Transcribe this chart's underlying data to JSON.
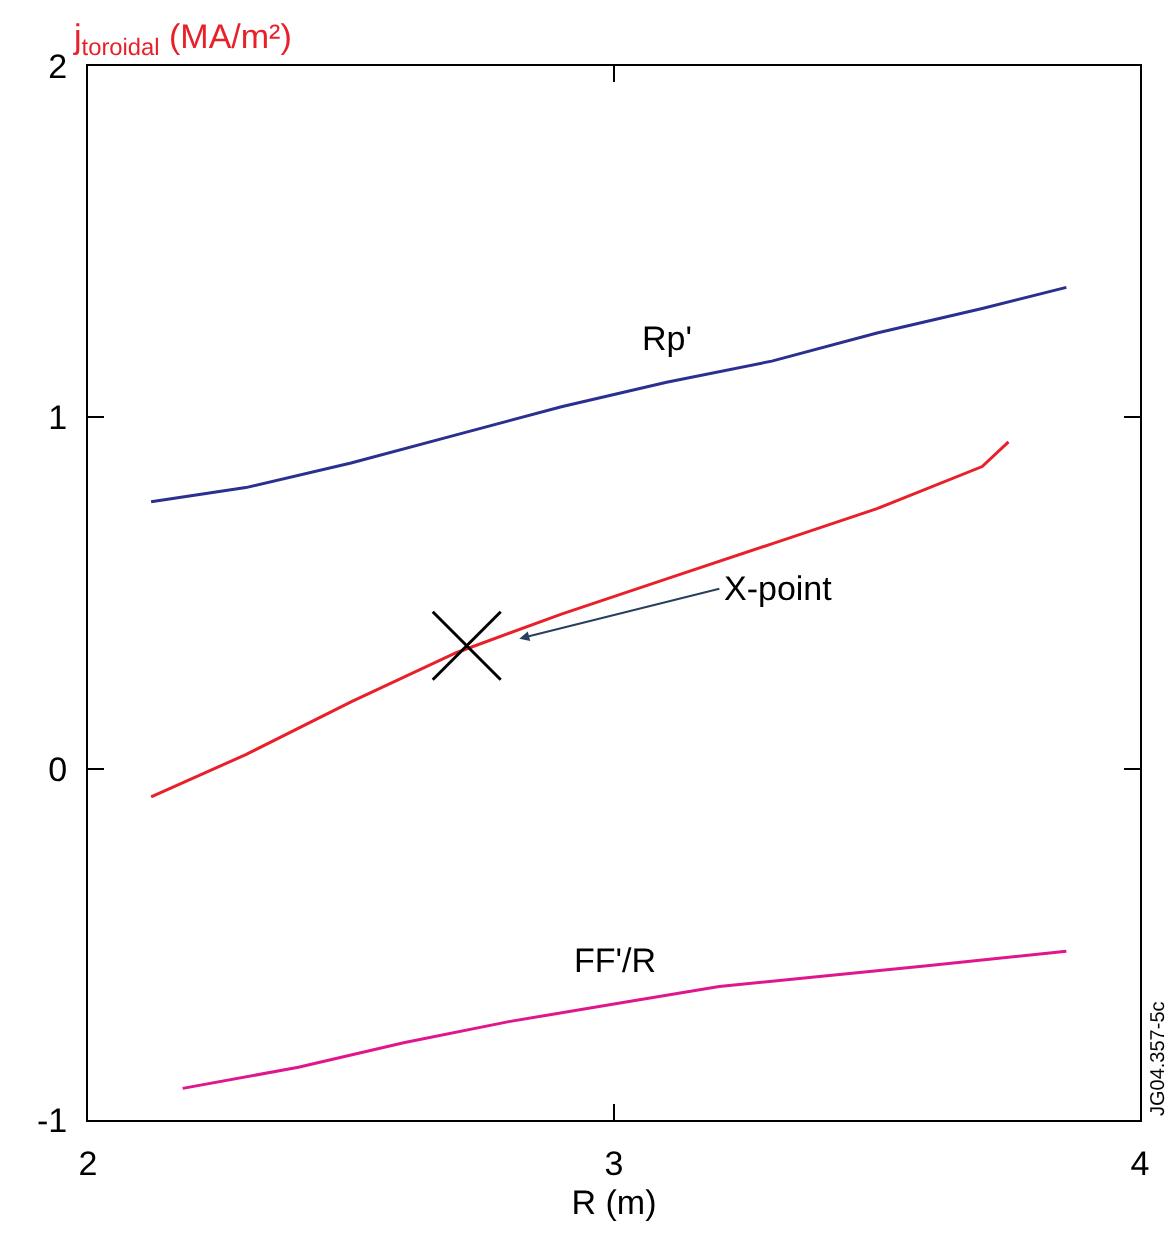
{
  "chart_data": {
    "type": "line",
    "ylabel": "j$_{toroidal}$ (MA/m²)",
    "xlabel": "R (m)",
    "xlim": [
      2,
      4
    ],
    "xticks": [
      2,
      3,
      4
    ],
    "ylim": [
      -1,
      2
    ],
    "yticks": [
      -1,
      0,
      1,
      2
    ],
    "legend": false,
    "series": [
      {
        "name": "Rp'",
        "color": "#2b2f8f",
        "x": [
          2.12,
          2.3,
          2.5,
          2.7,
          2.9,
          3.1,
          3.3,
          3.5,
          3.7,
          3.86
        ],
        "values": [
          0.76,
          0.8,
          0.87,
          0.95,
          1.03,
          1.1,
          1.16,
          1.24,
          1.31,
          1.37
        ]
      },
      {
        "color": "#e8202a",
        "x": [
          2.12,
          2.3,
          2.5,
          2.7,
          2.9,
          3.1,
          3.3,
          3.5,
          3.7,
          3.75
        ],
        "values": [
          -0.08,
          0.04,
          0.19,
          0.33,
          0.44,
          0.54,
          0.64,
          0.74,
          0.86,
          0.93
        ]
      },
      {
        "name": "FF'/R",
        "color": "#e0168c",
        "x": [
          2.18,
          2.4,
          2.6,
          2.8,
          3.0,
          3.2,
          3.4,
          3.6,
          3.86
        ],
        "values": [
          -0.91,
          -0.85,
          -0.78,
          -0.72,
          -0.67,
          -0.62,
          -0.59,
          -0.56,
          -0.52
        ]
      },
      {
        "type": "scatter",
        "marker": "cross",
        "color": "#000000",
        "x": [
          2.72
        ],
        "values": [
          0.35
        ]
      }
    ],
    "annotations": [
      {
        "text": "X-point",
        "x": 2.82,
        "y": 0.37
      },
      "JG04.357-5c"
    ]
  }
}
